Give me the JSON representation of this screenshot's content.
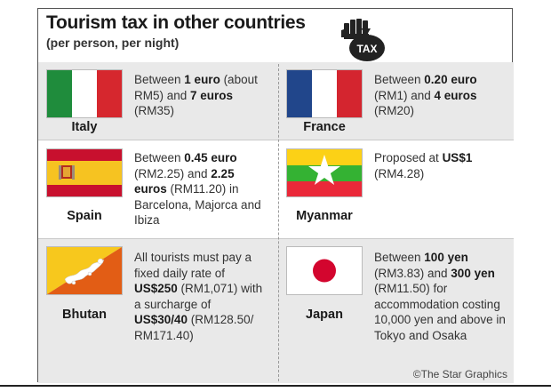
{
  "header": {
    "title": "Tourism tax in other countries",
    "subtitle": "(per person, per night)",
    "icon_label": "TAX"
  },
  "countries": [
    {
      "name": "Italy",
      "flag": "italy-flag",
      "parts": [
        {
          "t": "Between ",
          "b": false
        },
        {
          "t": "1 euro",
          "b": true
        },
        {
          "t": " (about RM5) and ",
          "b": false
        },
        {
          "t": "7 euros",
          "b": true
        },
        {
          "t": " (RM35)",
          "b": false
        }
      ]
    },
    {
      "name": "France",
      "flag": "france-flag",
      "parts": [
        {
          "t": "Between ",
          "b": false
        },
        {
          "t": "0.20 euro",
          "b": true
        },
        {
          "t": " (RM1) and ",
          "b": false
        },
        {
          "t": "4 euros",
          "b": true
        },
        {
          "t": " (RM20)",
          "b": false
        }
      ]
    },
    {
      "name": "Spain",
      "flag": "spain-flag",
      "parts": [
        {
          "t": "Between ",
          "b": false
        },
        {
          "t": "0.45 euro",
          "b": true
        },
        {
          "t": " (RM2.25) and ",
          "b": false
        },
        {
          "t": "2.25 euros",
          "b": true
        },
        {
          "t": " (RM11.20) in Barcelona, Majorca and Ibiza",
          "b": false
        }
      ]
    },
    {
      "name": "Myanmar",
      "flag": "myanmar-flag",
      "parts": [
        {
          "t": "Proposed at ",
          "b": false
        },
        {
          "t": "US$1",
          "b": true
        },
        {
          "t": " (RM4.28)",
          "b": false
        }
      ]
    },
    {
      "name": "Bhutan",
      "flag": "bhutan-flag",
      "parts": [
        {
          "t": "All tourists must pay a fixed daily rate of ",
          "b": false
        },
        {
          "t": "US$250",
          "b": true
        },
        {
          "t": " (RM1,071) with a surcharge of ",
          "b": false
        },
        {
          "t": "US$30/40",
          "b": true
        },
        {
          "t": " (RM128.50/ RM171.40)",
          "b": false
        }
      ]
    },
    {
      "name": "Japan",
      "flag": "japan-flag",
      "parts": [
        {
          "t": "Between ",
          "b": false
        },
        {
          "t": "100 yen",
          "b": true
        },
        {
          "t": " (RM3.83) and ",
          "b": false
        },
        {
          "t": "300 yen",
          "b": true
        },
        {
          "t": " (RM11.50) for accommodation costing 10,000 yen and above in Tokyo and Osaka",
          "b": false
        }
      ]
    }
  ],
  "credit": "©The Star Graphics",
  "colors": {
    "row_gray": "#e9e9e9",
    "italy": [
      "#1f8c3c",
      "#ffffff",
      "#d6272e"
    ],
    "france": [
      "#21468b",
      "#ffffff",
      "#d4252f"
    ],
    "spain": [
      "#c8102e",
      "#f6c321"
    ],
    "myanmar": [
      "#fcd116",
      "#34b233",
      "#ea2839"
    ],
    "bhutan": [
      "#f7c81d",
      "#e25d15"
    ],
    "japan": [
      "#ffffff",
      "#d3052e"
    ]
  }
}
